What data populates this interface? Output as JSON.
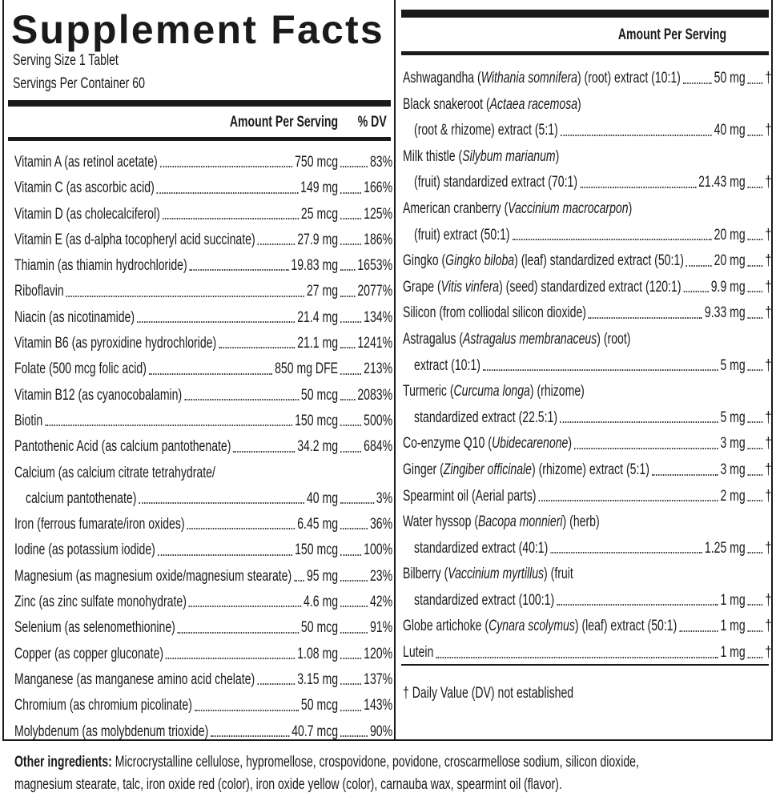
{
  "header": {
    "title": "Supplement Facts",
    "serving_size": "Serving Size 1 Tablet",
    "servings_per_container": "Servings Per Container 60"
  },
  "left": {
    "column_headers": {
      "amount": "Amount Per Serving",
      "dv": "% DV"
    },
    "rows": [
      {
        "lines": [
          [
            "Vitamin A (as retinol acetate)"
          ]
        ],
        "amount": "750 mcg",
        "dv": "83%"
      },
      {
        "lines": [
          [
            "Vitamin C (as ascorbic acid)"
          ]
        ],
        "amount": "149 mg",
        "dv": "166%"
      },
      {
        "lines": [
          [
            "Vitamin D (as cholecalciferol)"
          ]
        ],
        "amount": "25 mcg",
        "dv": "125%"
      },
      {
        "lines": [
          [
            "Vitamin E (as d-alpha tocopheryl acid succinate)"
          ]
        ],
        "amount": "27.9 mg",
        "dv": "186%"
      },
      {
        "lines": [
          [
            "Thiamin (as thiamin hydrochloride)"
          ]
        ],
        "amount": "19.83 mg",
        "dv": "1653%"
      },
      {
        "lines": [
          [
            "Riboflavin"
          ]
        ],
        "amount": "27 mg",
        "dv": "2077%"
      },
      {
        "lines": [
          [
            "Niacin (as nicotinamide)"
          ]
        ],
        "amount": "21.4 mg",
        "dv": "134%"
      },
      {
        "lines": [
          [
            "Vitamin B6 (as pyroxidine hydrochloride)"
          ]
        ],
        "amount": "21.1 mg",
        "dv": "1241%"
      },
      {
        "lines": [
          [
            "Folate (500 mcg folic acid)"
          ]
        ],
        "amount": "850 mg DFE",
        "dv": "213%"
      },
      {
        "lines": [
          [
            "Vitamin B12 (as cyanocobalamin)"
          ]
        ],
        "amount": "50 mcg",
        "dv": "2083%"
      },
      {
        "lines": [
          [
            "Biotin"
          ]
        ],
        "amount": "150 mcg",
        "dv": "500%"
      },
      {
        "lines": [
          [
            "Pantothenic Acid (as calcium pantothenate)"
          ]
        ],
        "amount": "34.2 mg",
        "dv": "684%"
      },
      {
        "lines": [
          [
            "Calcium (as calcium citrate tetrahydrate/"
          ],
          [
            "calcium pantothenate)"
          ]
        ],
        "amount": "40 mg",
        "dv": "3%"
      },
      {
        "lines": [
          [
            "Iron (ferrous fumarate/iron oxides)"
          ]
        ],
        "amount": "6.45 mg",
        "dv": "36%"
      },
      {
        "lines": [
          [
            "Iodine (as potassium iodide)"
          ]
        ],
        "amount": "150 mcg",
        "dv": "100%"
      },
      {
        "lines": [
          [
            "Magnesium (as magnesium oxide/magnesium stearate)"
          ]
        ],
        "amount": "95 mg",
        "dv": "23%"
      },
      {
        "lines": [
          [
            "Zinc (as zinc sulfate monohydrate)"
          ]
        ],
        "amount": "4.6 mg",
        "dv": "42%"
      },
      {
        "lines": [
          [
            "Selenium (as selenomethionine)"
          ]
        ],
        "amount": "50 mcg",
        "dv": "91%"
      },
      {
        "lines": [
          [
            "Copper (as copper gluconate)"
          ]
        ],
        "amount": "1.08 mg",
        "dv": "120%"
      },
      {
        "lines": [
          [
            "Manganese (as manganese amino acid chelate)"
          ]
        ],
        "amount": "3.15 mg",
        "dv": "137%"
      },
      {
        "lines": [
          [
            "Chromium (as chromium picolinate)"
          ]
        ],
        "amount": "50 mcg",
        "dv": "143%"
      },
      {
        "lines": [
          [
            "Molybdenum (as molybdenum trioxide)"
          ]
        ],
        "amount": "40.7 mcg",
        "dv": "90%"
      }
    ]
  },
  "right": {
    "column_header": "Amount Per Serving",
    "rows": [
      {
        "lines": [
          [
            "Ashwagandha (",
            "Withania somnifera",
            ") (root) extract (10:1)"
          ]
        ],
        "amount": "50 mg",
        "dv": "†"
      },
      {
        "lines": [
          [
            "Black snakeroot (",
            "Actaea racemosa",
            ")"
          ],
          [
            "(root & rhizome) extract (5:1)"
          ]
        ],
        "amount": "40 mg",
        "dv": "†"
      },
      {
        "lines": [
          [
            "Milk thistle (",
            "Silybum marianum",
            ")"
          ],
          [
            "(fruit) standardized extract (70:1)"
          ]
        ],
        "amount": "21.43 mg",
        "dv": "†"
      },
      {
        "lines": [
          [
            "American cranberry (",
            "Vaccinium macrocarpon",
            ")"
          ],
          [
            "(fruit) extract (50:1)"
          ]
        ],
        "amount": "20 mg",
        "dv": "†"
      },
      {
        "lines": [
          [
            "Gingko (",
            "Gingko biloba",
            ") (leaf) standardized extract (50:1)"
          ]
        ],
        "amount": "20 mg",
        "dv": "†"
      },
      {
        "lines": [
          [
            "Grape (",
            "Vitis vinfera",
            ") (seed) standardized extract (120:1)"
          ]
        ],
        "amount": "9.9 mg",
        "dv": "†"
      },
      {
        "lines": [
          [
            "Silicon (from colliodal silicon dioxide)"
          ]
        ],
        "amount": "9.33 mg",
        "dv": "†"
      },
      {
        "lines": [
          [
            "Astragalus (",
            "Astragalus membranaceus",
            ") (root)"
          ],
          [
            "extract (10:1)"
          ]
        ],
        "amount": "5 mg",
        "dv": "†"
      },
      {
        "lines": [
          [
            "Turmeric (",
            "Curcuma longa",
            ") (rhizome)"
          ],
          [
            "standardized extract (22.5:1)"
          ]
        ],
        "amount": "5 mg",
        "dv": "†"
      },
      {
        "lines": [
          [
            "Co-enzyme Q10 (",
            "Ubidecarenone",
            ")"
          ]
        ],
        "amount": "3 mg",
        "dv": "†"
      },
      {
        "lines": [
          [
            "Ginger (",
            "Zingiber officinale",
            ") (rhizome) extract (5:1)"
          ]
        ],
        "amount": "3 mg",
        "dv": "†"
      },
      {
        "lines": [
          [
            "Spearmint oil (Aerial parts)"
          ]
        ],
        "amount": "2 mg",
        "dv": "†"
      },
      {
        "lines": [
          [
            "Water hyssop (",
            "Bacopa monnieri",
            ") (herb)"
          ],
          [
            "standardized extract (40:1)"
          ]
        ],
        "amount": "1.25 mg",
        "dv": "†"
      },
      {
        "lines": [
          [
            "Bilberry (",
            "Vaccinium myrtillus",
            ") (fruit"
          ],
          [
            "standardized extract (100:1)"
          ]
        ],
        "amount": "1 mg",
        "dv": "†"
      },
      {
        "lines": [
          [
            "Globe artichoke (",
            "Cynara scolymus",
            ") (leaf) extract (50:1)"
          ]
        ],
        "amount": "1 mg",
        "dv": "†"
      },
      {
        "lines": [
          [
            "Lutein"
          ]
        ],
        "amount": "1 mg",
        "dv": "†"
      }
    ],
    "footnote": "† Daily Value (DV) not established"
  },
  "other_ingredients": {
    "label": "Other ingredients:",
    "text": "Microcrystalline cellulose, hypromellose, crospovidone, povidone, croscarmellose sodium, silicon dioxide, magnesium stearate, talc, iron oxide red (color), iron oxide yellow (color), carnauba wax, spearmint oil (flavor)."
  }
}
